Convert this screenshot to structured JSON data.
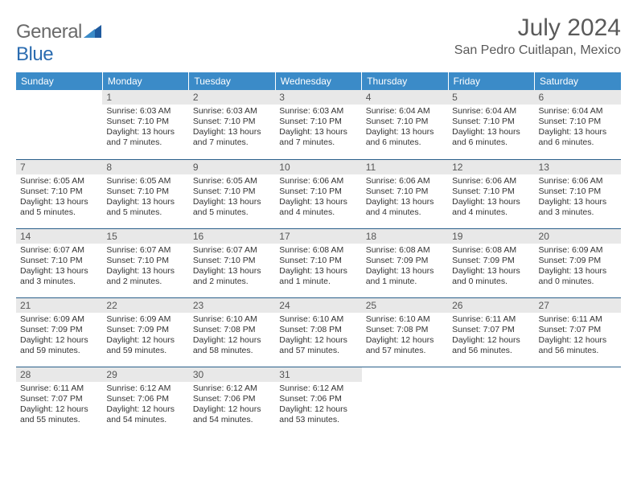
{
  "logo": {
    "text_general": "General",
    "text_blue": "Blue"
  },
  "title": "July 2024",
  "location": "San Pedro Cuitlapan, Mexico",
  "colors": {
    "header_bg": "#3b8bc8",
    "header_text": "#ffffff",
    "daynum_bg": "#e8e8e8",
    "week_border": "#2a5f8a",
    "logo_gray": "#6a6a6a",
    "logo_blue": "#2b6cb0",
    "triangle_fill": "#1e5a9e"
  },
  "day_headers": [
    "Sunday",
    "Monday",
    "Tuesday",
    "Wednesday",
    "Thursday",
    "Friday",
    "Saturday"
  ],
  "weeks": [
    [
      {
        "empty": true
      },
      {
        "num": "1",
        "sunrise": "Sunrise: 6:03 AM",
        "sunset": "Sunset: 7:10 PM",
        "daylight": "Daylight: 13 hours and 7 minutes."
      },
      {
        "num": "2",
        "sunrise": "Sunrise: 6:03 AM",
        "sunset": "Sunset: 7:10 PM",
        "daylight": "Daylight: 13 hours and 7 minutes."
      },
      {
        "num": "3",
        "sunrise": "Sunrise: 6:03 AM",
        "sunset": "Sunset: 7:10 PM",
        "daylight": "Daylight: 13 hours and 7 minutes."
      },
      {
        "num": "4",
        "sunrise": "Sunrise: 6:04 AM",
        "sunset": "Sunset: 7:10 PM",
        "daylight": "Daylight: 13 hours and 6 minutes."
      },
      {
        "num": "5",
        "sunrise": "Sunrise: 6:04 AM",
        "sunset": "Sunset: 7:10 PM",
        "daylight": "Daylight: 13 hours and 6 minutes."
      },
      {
        "num": "6",
        "sunrise": "Sunrise: 6:04 AM",
        "sunset": "Sunset: 7:10 PM",
        "daylight": "Daylight: 13 hours and 6 minutes."
      }
    ],
    [
      {
        "num": "7",
        "sunrise": "Sunrise: 6:05 AM",
        "sunset": "Sunset: 7:10 PM",
        "daylight": "Daylight: 13 hours and 5 minutes."
      },
      {
        "num": "8",
        "sunrise": "Sunrise: 6:05 AM",
        "sunset": "Sunset: 7:10 PM",
        "daylight": "Daylight: 13 hours and 5 minutes."
      },
      {
        "num": "9",
        "sunrise": "Sunrise: 6:05 AM",
        "sunset": "Sunset: 7:10 PM",
        "daylight": "Daylight: 13 hours and 5 minutes."
      },
      {
        "num": "10",
        "sunrise": "Sunrise: 6:06 AM",
        "sunset": "Sunset: 7:10 PM",
        "daylight": "Daylight: 13 hours and 4 minutes."
      },
      {
        "num": "11",
        "sunrise": "Sunrise: 6:06 AM",
        "sunset": "Sunset: 7:10 PM",
        "daylight": "Daylight: 13 hours and 4 minutes."
      },
      {
        "num": "12",
        "sunrise": "Sunrise: 6:06 AM",
        "sunset": "Sunset: 7:10 PM",
        "daylight": "Daylight: 13 hours and 4 minutes."
      },
      {
        "num": "13",
        "sunrise": "Sunrise: 6:06 AM",
        "sunset": "Sunset: 7:10 PM",
        "daylight": "Daylight: 13 hours and 3 minutes."
      }
    ],
    [
      {
        "num": "14",
        "sunrise": "Sunrise: 6:07 AM",
        "sunset": "Sunset: 7:10 PM",
        "daylight": "Daylight: 13 hours and 3 minutes."
      },
      {
        "num": "15",
        "sunrise": "Sunrise: 6:07 AM",
        "sunset": "Sunset: 7:10 PM",
        "daylight": "Daylight: 13 hours and 2 minutes."
      },
      {
        "num": "16",
        "sunrise": "Sunrise: 6:07 AM",
        "sunset": "Sunset: 7:10 PM",
        "daylight": "Daylight: 13 hours and 2 minutes."
      },
      {
        "num": "17",
        "sunrise": "Sunrise: 6:08 AM",
        "sunset": "Sunset: 7:10 PM",
        "daylight": "Daylight: 13 hours and 1 minute."
      },
      {
        "num": "18",
        "sunrise": "Sunrise: 6:08 AM",
        "sunset": "Sunset: 7:09 PM",
        "daylight": "Daylight: 13 hours and 1 minute."
      },
      {
        "num": "19",
        "sunrise": "Sunrise: 6:08 AM",
        "sunset": "Sunset: 7:09 PM",
        "daylight": "Daylight: 13 hours and 0 minutes."
      },
      {
        "num": "20",
        "sunrise": "Sunrise: 6:09 AM",
        "sunset": "Sunset: 7:09 PM",
        "daylight": "Daylight: 13 hours and 0 minutes."
      }
    ],
    [
      {
        "num": "21",
        "sunrise": "Sunrise: 6:09 AM",
        "sunset": "Sunset: 7:09 PM",
        "daylight": "Daylight: 12 hours and 59 minutes."
      },
      {
        "num": "22",
        "sunrise": "Sunrise: 6:09 AM",
        "sunset": "Sunset: 7:09 PM",
        "daylight": "Daylight: 12 hours and 59 minutes."
      },
      {
        "num": "23",
        "sunrise": "Sunrise: 6:10 AM",
        "sunset": "Sunset: 7:08 PM",
        "daylight": "Daylight: 12 hours and 58 minutes."
      },
      {
        "num": "24",
        "sunrise": "Sunrise: 6:10 AM",
        "sunset": "Sunset: 7:08 PM",
        "daylight": "Daylight: 12 hours and 57 minutes."
      },
      {
        "num": "25",
        "sunrise": "Sunrise: 6:10 AM",
        "sunset": "Sunset: 7:08 PM",
        "daylight": "Daylight: 12 hours and 57 minutes."
      },
      {
        "num": "26",
        "sunrise": "Sunrise: 6:11 AM",
        "sunset": "Sunset: 7:07 PM",
        "daylight": "Daylight: 12 hours and 56 minutes."
      },
      {
        "num": "27",
        "sunrise": "Sunrise: 6:11 AM",
        "sunset": "Sunset: 7:07 PM",
        "daylight": "Daylight: 12 hours and 56 minutes."
      }
    ],
    [
      {
        "num": "28",
        "sunrise": "Sunrise: 6:11 AM",
        "sunset": "Sunset: 7:07 PM",
        "daylight": "Daylight: 12 hours and 55 minutes."
      },
      {
        "num": "29",
        "sunrise": "Sunrise: 6:12 AM",
        "sunset": "Sunset: 7:06 PM",
        "daylight": "Daylight: 12 hours and 54 minutes."
      },
      {
        "num": "30",
        "sunrise": "Sunrise: 6:12 AM",
        "sunset": "Sunset: 7:06 PM",
        "daylight": "Daylight: 12 hours and 54 minutes."
      },
      {
        "num": "31",
        "sunrise": "Sunrise: 6:12 AM",
        "sunset": "Sunset: 7:06 PM",
        "daylight": "Daylight: 12 hours and 53 minutes."
      },
      {
        "empty": true
      },
      {
        "empty": true
      },
      {
        "empty": true
      }
    ]
  ]
}
